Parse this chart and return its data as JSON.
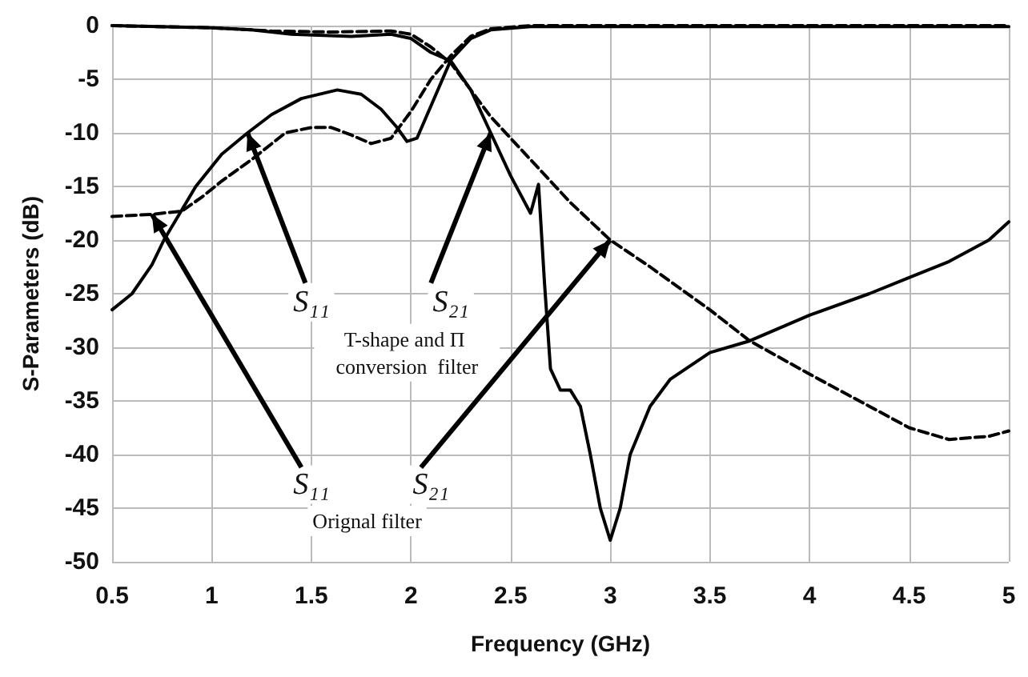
{
  "chart_data": {
    "type": "line",
    "xlabel": "Frequency (GHz)",
    "ylabel": "S-Parameters (dB)",
    "xlim": [
      0.5,
      5
    ],
    "xticks": [
      0.5,
      1,
      1.5,
      2,
      2.5,
      3,
      3.5,
      4,
      4.5,
      5
    ],
    "ylim": [
      -50,
      0
    ],
    "yticks": [
      -50,
      -45,
      -40,
      -35,
      -30,
      -25,
      -20,
      -15,
      -10,
      -5,
      0
    ],
    "grid": true,
    "marker": "none",
    "annotations": [
      {
        "text": "S₁₁",
        "x": 1.18,
        "y": -10
      },
      {
        "text": "S₂₁",
        "x": 2.4,
        "y": -10
      },
      "T-shape and Π conversion  filter",
      {
        "text": "S₁₁",
        "x": 0.7,
        "y": -17.6
      },
      {
        "text": "S₂₁",
        "x": 3,
        "y": -20
      },
      "Orignal filter"
    ],
    "series": [
      {
        "color": "#000000",
        "line_style": "solid",
        "x": [
          0.5,
          0.6,
          0.7,
          0.76,
          0.84,
          0.92,
          1.05,
          1.18,
          1.3,
          1.45,
          1.63,
          1.75,
          1.85,
          1.93,
          1.98,
          2.03,
          2.1,
          2.2,
          2.3,
          2.4,
          2.6,
          3,
          4,
          5
        ],
        "values": [
          -26.5,
          -25,
          -22.3,
          -20,
          -17.5,
          -15,
          -12,
          -10,
          -8.3,
          -6.8,
          -6,
          -6.4,
          -7.8,
          -9.5,
          -10.8,
          -10.5,
          -7.5,
          -3.2,
          -1.2,
          -0.4,
          -0.1,
          -0.1,
          -0.1,
          -0.1
        ]
      },
      {
        "color": "#000000",
        "line_style": "solid",
        "x": [
          0.5,
          1,
          1.2,
          1.4,
          1.7,
          1.9,
          2,
          2.1,
          2.2,
          2.3,
          2.4,
          2.5,
          2.6,
          2.64,
          2.67,
          2.7,
          2.75,
          2.8,
          2.85,
          2.9,
          2.95,
          3,
          3.05,
          3.1,
          3.2,
          3.3,
          3.5,
          3.7,
          4,
          4.3,
          4.5,
          4.7,
          4.9,
          5
        ],
        "values": [
          0,
          -0.2,
          -0.4,
          -0.8,
          -1,
          -0.8,
          -1.2,
          -2.5,
          -3.3,
          -6,
          -10,
          -14,
          -17.5,
          -14.8,
          -24,
          -32,
          -34,
          -34,
          -35.5,
          -40,
          -45,
          -48,
          -45,
          -40,
          -35.5,
          -33,
          -30.5,
          -29.4,
          -27,
          -25,
          -23.5,
          -22,
          -20,
          -18.3
        ]
      },
      {
        "color": "#000000",
        "line_style": "dashed",
        "x": [
          0.5,
          0.7,
          0.85,
          0.95,
          1.05,
          1.2,
          1.37,
          1.5,
          1.6,
          1.7,
          1.8,
          1.9,
          2,
          2.1,
          2.2,
          2.3,
          2.4,
          2.6,
          3,
          4,
          5
        ],
        "values": [
          -17.8,
          -17.6,
          -17.3,
          -16,
          -14.5,
          -12.5,
          -10,
          -9.5,
          -9.5,
          -10.2,
          -11,
          -10.5,
          -8,
          -5,
          -2.8,
          -1,
          -0.3,
          0,
          0,
          0,
          0
        ]
      },
      {
        "color": "#000000",
        "line_style": "dashed",
        "x": [
          0.5,
          1,
          1.3,
          1.6,
          1.9,
          2,
          2.1,
          2.2,
          2.3,
          2.4,
          2.6,
          2.8,
          3,
          3.2,
          3.5,
          3.7,
          4,
          4.3,
          4.5,
          4.7,
          4.9,
          5
        ],
        "values": [
          0,
          -0.2,
          -0.5,
          -0.6,
          -0.5,
          -0.8,
          -2,
          -3.5,
          -6,
          -8.5,
          -12.5,
          -16.5,
          -20,
          -22.5,
          -26.5,
          -29.4,
          -32.5,
          -35.5,
          -37.5,
          -38.6,
          -38.3,
          -37.8
        ]
      }
    ]
  }
}
